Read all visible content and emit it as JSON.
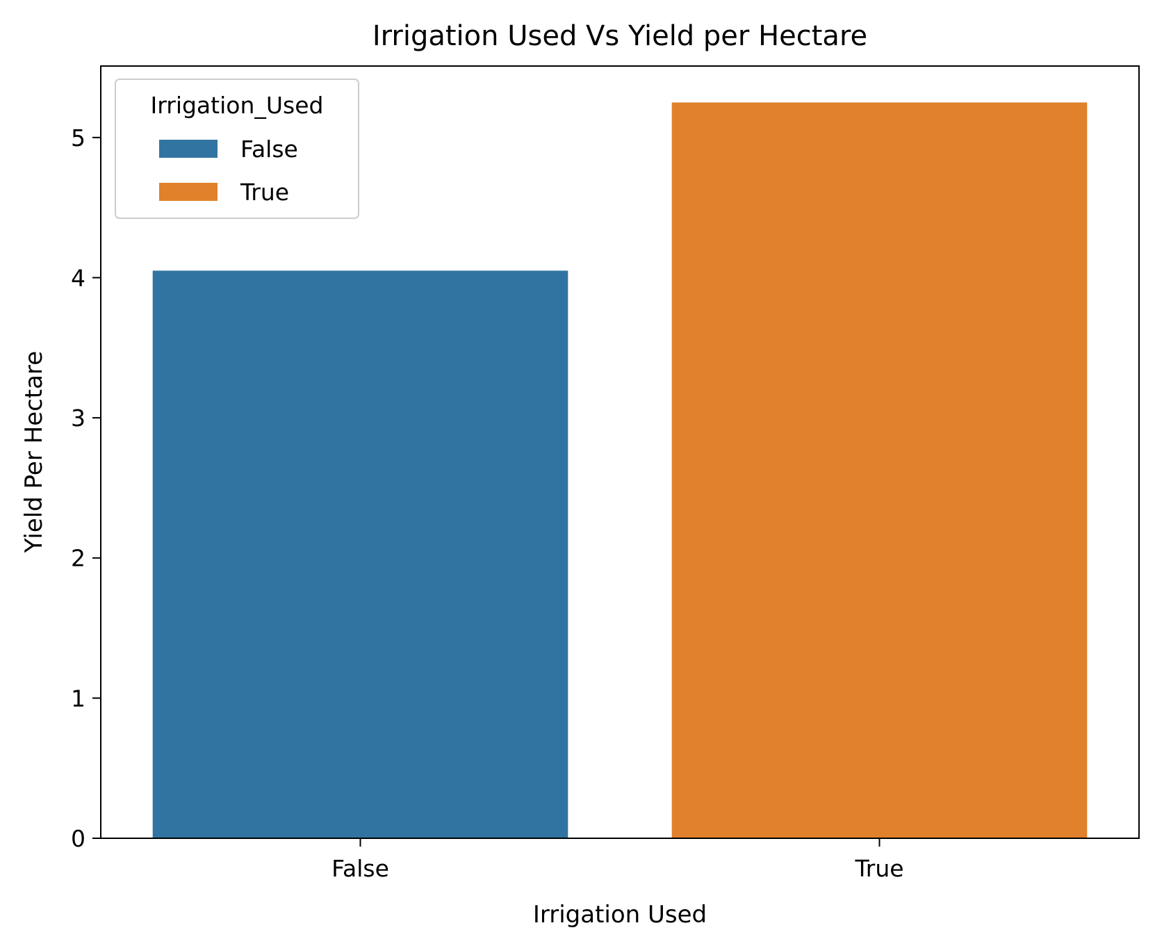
{
  "chart_data": {
    "type": "bar",
    "title": "Irrigation Used Vs Yield per Hectare",
    "xlabel": "Irrigation Used",
    "ylabel": "Yield Per Hectare",
    "categories": [
      "False",
      "True"
    ],
    "values": [
      4.05,
      5.25
    ],
    "colors": [
      "#3274a1",
      "#e1812c"
    ],
    "ylim": [
      0,
      5.51
    ],
    "yticks": [
      0,
      1,
      2,
      3,
      4,
      5
    ],
    "grid": false,
    "legend": {
      "title": "Irrigation_Used",
      "placement": "top-left",
      "entries": [
        "False",
        "True"
      ]
    }
  }
}
